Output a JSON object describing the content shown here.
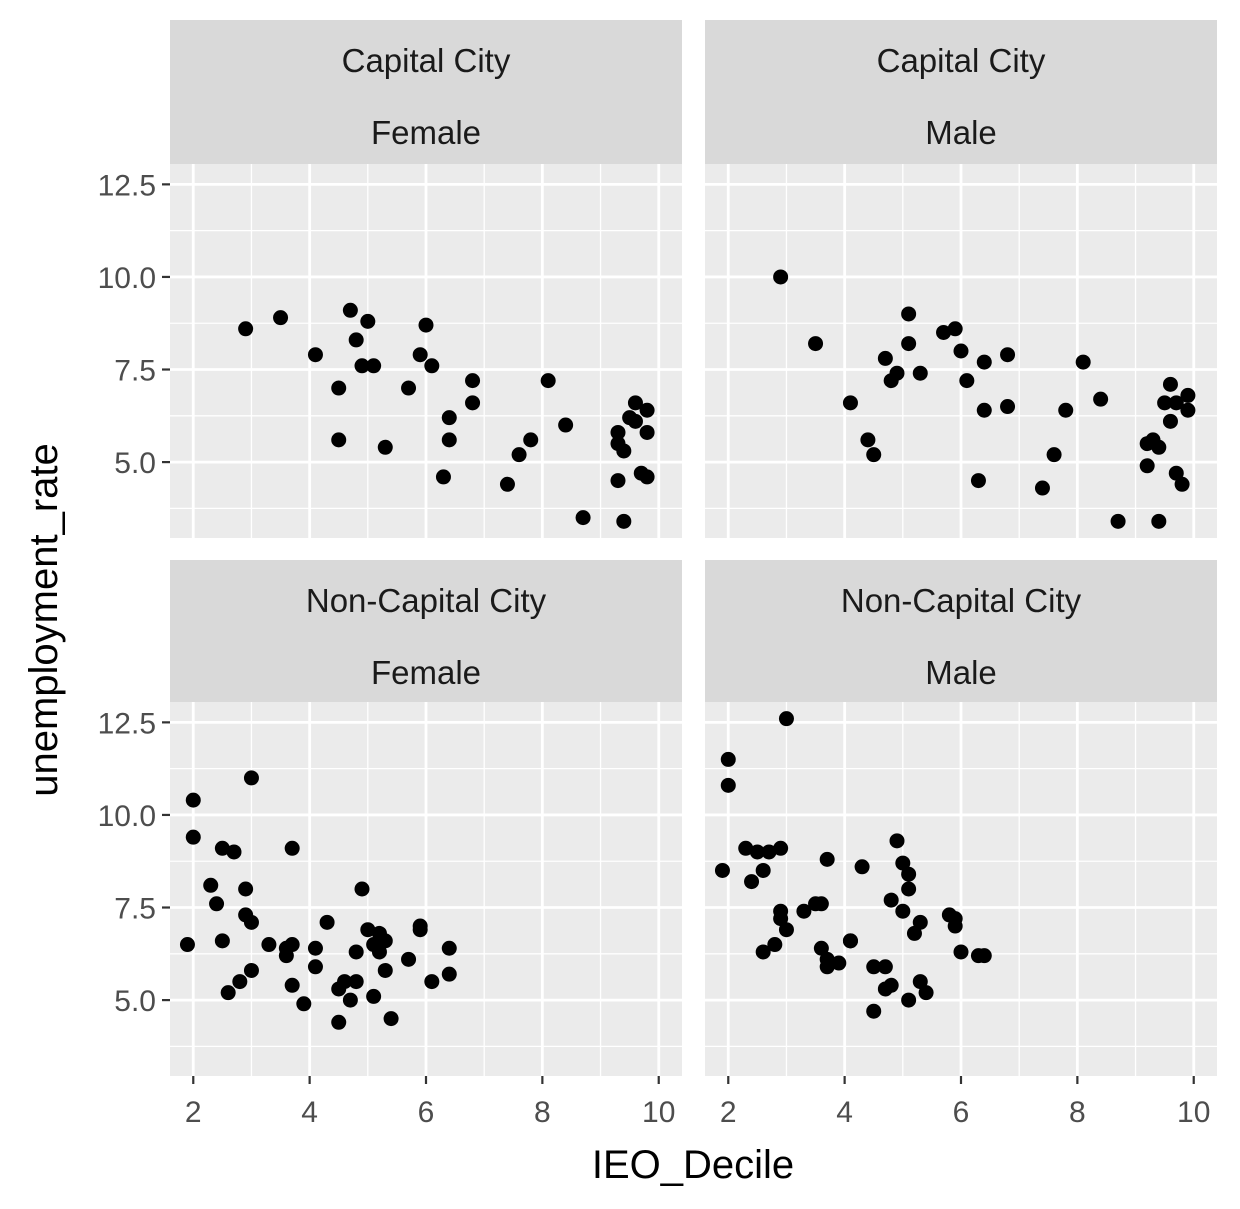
{
  "chart_data": {
    "type": "scatter",
    "xlabel": "IEO_Decile",
    "ylabel": "unemployment_rate",
    "x_ticks": [
      2,
      4,
      6,
      8,
      10
    ],
    "y_ticks": [
      "5.0",
      "7.5",
      "10.0",
      "12.5"
    ],
    "xlim": [
      1.6,
      10.4
    ],
    "ylim": [
      2.95,
      13.05
    ],
    "grid": true,
    "colors": {
      "panel_bg": "#EBEBEB",
      "strip_bg": "#D9D9D9",
      "grid": "#FFFFFF",
      "point": "#000000"
    },
    "panels": [
      {
        "strip": [
          "Capital City",
          "Female"
        ],
        "points": [
          [
            2.9,
            8.6
          ],
          [
            3.5,
            8.9
          ],
          [
            4.1,
            7.9
          ],
          [
            4.5,
            7.0
          ],
          [
            4.5,
            5.6
          ],
          [
            4.7,
            9.1
          ],
          [
            4.8,
            8.3
          ],
          [
            4.9,
            7.6
          ],
          [
            5.0,
            8.8
          ],
          [
            5.1,
            7.6
          ],
          [
            5.3,
            5.4
          ],
          [
            5.7,
            7.0
          ],
          [
            5.9,
            7.9
          ],
          [
            6.0,
            8.7
          ],
          [
            6.1,
            7.6
          ],
          [
            6.3,
            4.6
          ],
          [
            6.4,
            6.2
          ],
          [
            6.4,
            5.6
          ],
          [
            6.8,
            7.2
          ],
          [
            6.8,
            6.6
          ],
          [
            7.4,
            4.4
          ],
          [
            7.6,
            5.2
          ],
          [
            7.8,
            5.6
          ],
          [
            8.1,
            7.2
          ],
          [
            8.4,
            6.0
          ],
          [
            8.7,
            3.5
          ],
          [
            9.3,
            5.5
          ],
          [
            9.3,
            4.5
          ],
          [
            9.3,
            5.8
          ],
          [
            9.4,
            5.3
          ],
          [
            9.4,
            3.4
          ],
          [
            9.5,
            6.2
          ],
          [
            9.6,
            6.6
          ],
          [
            9.6,
            6.1
          ],
          [
            9.7,
            4.7
          ],
          [
            9.8,
            4.6
          ],
          [
            9.8,
            6.4
          ],
          [
            9.8,
            5.8
          ]
        ]
      },
      {
        "strip": [
          "Capital City",
          "Male"
        ],
        "points": [
          [
            2.9,
            10.0
          ],
          [
            3.5,
            8.2
          ],
          [
            4.1,
            6.6
          ],
          [
            4.4,
            5.6
          ],
          [
            4.5,
            5.2
          ],
          [
            4.7,
            7.8
          ],
          [
            4.8,
            7.2
          ],
          [
            4.9,
            7.4
          ],
          [
            5.1,
            9.0
          ],
          [
            5.1,
            8.2
          ],
          [
            5.3,
            7.4
          ],
          [
            5.7,
            8.5
          ],
          [
            5.9,
            8.6
          ],
          [
            6.0,
            8.0
          ],
          [
            6.1,
            7.2
          ],
          [
            6.3,
            4.5
          ],
          [
            6.4,
            6.4
          ],
          [
            6.4,
            7.7
          ],
          [
            6.8,
            7.9
          ],
          [
            6.8,
            6.5
          ],
          [
            7.4,
            4.3
          ],
          [
            7.6,
            5.2
          ],
          [
            7.8,
            6.4
          ],
          [
            8.1,
            7.7
          ],
          [
            8.4,
            6.7
          ],
          [
            8.7,
            3.4
          ],
          [
            9.2,
            5.5
          ],
          [
            9.2,
            4.9
          ],
          [
            9.3,
            5.6
          ],
          [
            9.4,
            5.4
          ],
          [
            9.4,
            3.4
          ],
          [
            9.5,
            6.6
          ],
          [
            9.6,
            7.1
          ],
          [
            9.6,
            6.1
          ],
          [
            9.7,
            6.6
          ],
          [
            9.7,
            4.7
          ],
          [
            9.8,
            4.4
          ],
          [
            9.9,
            6.8
          ],
          [
            9.9,
            6.4
          ]
        ]
      },
      {
        "strip": [
          "Non-Capital City",
          "Female"
        ],
        "points": [
          [
            1.9,
            6.5
          ],
          [
            2.0,
            10.4
          ],
          [
            2.0,
            9.4
          ],
          [
            2.3,
            8.1
          ],
          [
            2.4,
            7.6
          ],
          [
            2.5,
            9.1
          ],
          [
            2.5,
            6.6
          ],
          [
            2.6,
            5.2
          ],
          [
            2.7,
            9.0
          ],
          [
            2.8,
            5.5
          ],
          [
            2.9,
            8.0
          ],
          [
            2.9,
            7.3
          ],
          [
            3.0,
            7.1
          ],
          [
            3.0,
            11.0
          ],
          [
            3.0,
            5.8
          ],
          [
            3.3,
            6.5
          ],
          [
            3.6,
            6.4
          ],
          [
            3.6,
            6.2
          ],
          [
            3.7,
            5.4
          ],
          [
            3.7,
            6.5
          ],
          [
            3.7,
            9.1
          ],
          [
            3.9,
            4.9
          ],
          [
            4.1,
            5.9
          ],
          [
            4.1,
            6.4
          ],
          [
            4.3,
            7.1
          ],
          [
            4.5,
            5.3
          ],
          [
            4.5,
            4.4
          ],
          [
            4.6,
            5.5
          ],
          [
            4.7,
            5.0
          ],
          [
            4.8,
            6.3
          ],
          [
            4.8,
            5.5
          ],
          [
            4.9,
            8.0
          ],
          [
            5.0,
            6.9
          ],
          [
            5.1,
            5.1
          ],
          [
            5.1,
            6.5
          ],
          [
            5.2,
            6.8
          ],
          [
            5.2,
            6.3
          ],
          [
            5.3,
            6.6
          ],
          [
            5.3,
            5.8
          ],
          [
            5.4,
            4.5
          ],
          [
            5.7,
            6.1
          ],
          [
            5.9,
            6.9
          ],
          [
            5.9,
            7.0
          ],
          [
            6.1,
            5.5
          ],
          [
            6.4,
            6.4
          ],
          [
            6.4,
            5.7
          ]
        ]
      },
      {
        "strip": [
          "Non-Capital City",
          "Male"
        ],
        "points": [
          [
            1.9,
            8.5
          ],
          [
            2.0,
            11.5
          ],
          [
            2.0,
            10.8
          ],
          [
            2.3,
            9.1
          ],
          [
            2.4,
            8.2
          ],
          [
            2.5,
            9.0
          ],
          [
            2.6,
            8.5
          ],
          [
            2.6,
            6.3
          ],
          [
            2.7,
            9.0
          ],
          [
            2.8,
            6.5
          ],
          [
            2.9,
            7.4
          ],
          [
            2.9,
            7.2
          ],
          [
            2.9,
            9.1
          ],
          [
            3.0,
            12.6
          ],
          [
            3.0,
            6.9
          ],
          [
            3.3,
            7.4
          ],
          [
            3.5,
            7.6
          ],
          [
            3.6,
            7.6
          ],
          [
            3.6,
            6.4
          ],
          [
            3.7,
            5.9
          ],
          [
            3.7,
            6.1
          ],
          [
            3.7,
            8.8
          ],
          [
            3.9,
            6.0
          ],
          [
            4.1,
            6.6
          ],
          [
            4.1,
            6.6
          ],
          [
            4.3,
            8.6
          ],
          [
            4.5,
            5.9
          ],
          [
            4.5,
            4.7
          ],
          [
            4.7,
            5.9
          ],
          [
            4.7,
            5.3
          ],
          [
            4.8,
            7.7
          ],
          [
            4.8,
            5.4
          ],
          [
            4.9,
            9.3
          ],
          [
            5.0,
            8.7
          ],
          [
            5.0,
            7.4
          ],
          [
            5.1,
            5.0
          ],
          [
            5.1,
            8.4
          ],
          [
            5.1,
            8.0
          ],
          [
            5.2,
            6.8
          ],
          [
            5.3,
            7.1
          ],
          [
            5.3,
            5.5
          ],
          [
            5.4,
            5.2
          ],
          [
            5.8,
            7.3
          ],
          [
            5.9,
            7.2
          ],
          [
            5.9,
            7.0
          ],
          [
            6.0,
            6.3
          ],
          [
            6.3,
            6.2
          ],
          [
            6.4,
            6.2
          ]
        ]
      }
    ]
  }
}
